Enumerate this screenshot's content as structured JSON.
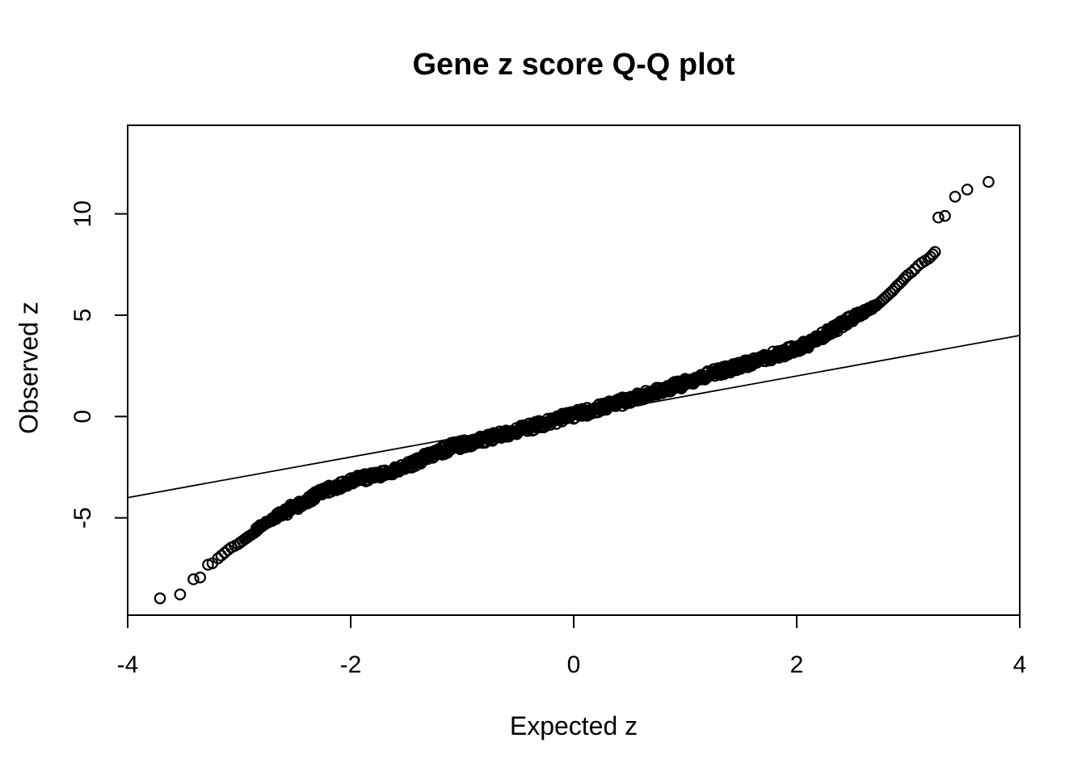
{
  "title": "Gene z score Q-Q plot",
  "chart_data": {
    "type": "scatter",
    "subtype": "qq-plot",
    "title": "Gene z score Q-Q plot",
    "xlabel": "Expected z",
    "ylabel": "Observed z",
    "xlim": [
      -4,
      4
    ],
    "ylim": [
      -9.8,
      14.37
    ],
    "x_ticks": [
      -4,
      -2,
      0,
      2,
      4
    ],
    "x_tick_labels": [
      "-4",
      "-2",
      "0",
      "2",
      "4"
    ],
    "y_ticks": [
      -5,
      0,
      5,
      10
    ],
    "y_tick_labels": [
      "-5",
      "0",
      "5",
      "10"
    ],
    "grid": false,
    "legend": "none",
    "marker": {
      "shape": "open-circle",
      "radius_px": 6.2,
      "stroke_px": 2.2,
      "color": "#000000"
    },
    "background_color": "#ffffff",
    "axis_color": "#000000",
    "reference_line": {
      "type": "line",
      "slope": 1,
      "intercept": 0,
      "description": "y = x identity line",
      "color": "#000000"
    },
    "dense_band": {
      "description": "heavily overplotted open circles forming a solid S-shaped band",
      "x_range": [
        -2.85,
        2.72
      ],
      "half_width_y": 0.45,
      "center_points": [
        [
          -2.85,
          -5.55
        ],
        [
          -2.75,
          -5.18
        ],
        [
          -2.6,
          -4.75
        ],
        [
          -2.45,
          -4.3
        ],
        [
          -2.3,
          -3.85
        ],
        [
          -2.15,
          -3.5
        ],
        [
          -2.0,
          -3.2
        ],
        [
          -1.85,
          -3.0
        ],
        [
          -1.7,
          -2.8
        ],
        [
          -1.55,
          -2.55
        ],
        [
          -1.4,
          -2.2
        ],
        [
          -1.25,
          -1.85
        ],
        [
          -1.1,
          -1.5
        ],
        [
          -0.95,
          -1.32
        ],
        [
          -0.8,
          -1.12
        ],
        [
          -0.65,
          -0.9
        ],
        [
          -0.5,
          -0.68
        ],
        [
          -0.35,
          -0.45
        ],
        [
          -0.2,
          -0.25
        ],
        [
          -0.05,
          0.0
        ],
        [
          0.1,
          0.22
        ],
        [
          0.25,
          0.45
        ],
        [
          0.4,
          0.67
        ],
        [
          0.55,
          0.92
        ],
        [
          0.7,
          1.15
        ],
        [
          0.85,
          1.4
        ],
        [
          1.0,
          1.66
        ],
        [
          1.15,
          1.94
        ],
        [
          1.3,
          2.2
        ],
        [
          1.45,
          2.45
        ],
        [
          1.6,
          2.68
        ],
        [
          1.75,
          2.92
        ],
        [
          1.9,
          3.18
        ],
        [
          2.05,
          3.48
        ],
        [
          2.2,
          3.9
        ],
        [
          2.35,
          4.35
        ],
        [
          2.5,
          4.85
        ],
        [
          2.62,
          5.22
        ],
        [
          2.72,
          5.5
        ]
      ]
    },
    "lower_tail_points": [
      [
        -3.71,
        -8.97
      ],
      [
        -3.53,
        -8.78
      ],
      [
        -3.41,
        -8.03
      ],
      [
        -3.35,
        -7.94
      ],
      [
        -3.28,
        -7.31
      ],
      [
        -3.24,
        -7.24
      ],
      [
        -3.19,
        -7.0
      ],
      [
        -3.16,
        -6.86
      ],
      [
        -3.13,
        -6.72
      ],
      [
        -3.1,
        -6.58
      ],
      [
        -3.07,
        -6.46
      ],
      [
        -3.04,
        -6.38
      ],
      [
        -3.01,
        -6.3
      ],
      [
        -2.99,
        -6.22
      ],
      [
        -2.97,
        -6.14
      ],
      [
        -2.95,
        -6.06
      ],
      [
        -2.93,
        -5.98
      ],
      [
        -2.91,
        -5.9
      ],
      [
        -2.89,
        -5.83
      ],
      [
        -2.87,
        -5.76
      ],
      [
        -2.85,
        -5.68
      ],
      [
        -2.84,
        -5.62
      ],
      [
        -2.83,
        -5.57
      ],
      [
        -2.82,
        -5.52
      ]
    ],
    "upper_tail_points": [
      [
        2.74,
        5.6
      ],
      [
        2.76,
        5.7
      ],
      [
        2.78,
        5.8
      ],
      [
        2.8,
        5.9
      ],
      [
        2.82,
        6.0
      ],
      [
        2.84,
        6.1
      ],
      [
        2.86,
        6.2
      ],
      [
        2.88,
        6.32
      ],
      [
        2.9,
        6.45
      ],
      [
        2.92,
        6.55
      ],
      [
        2.94,
        6.65
      ],
      [
        2.96,
        6.78
      ],
      [
        2.98,
        6.9
      ],
      [
        3.0,
        7.0
      ],
      [
        3.03,
        7.12
      ],
      [
        3.06,
        7.28
      ],
      [
        3.09,
        7.45
      ],
      [
        3.12,
        7.58
      ],
      [
        3.15,
        7.68
      ],
      [
        3.18,
        7.78
      ],
      [
        3.2,
        7.88
      ],
      [
        3.22,
        8.0
      ],
      [
        3.24,
        8.12
      ],
      [
        3.27,
        9.82
      ],
      [
        3.33,
        9.9
      ],
      [
        3.42,
        10.85
      ],
      [
        3.53,
        11.2
      ],
      [
        3.72,
        11.58
      ]
    ]
  }
}
